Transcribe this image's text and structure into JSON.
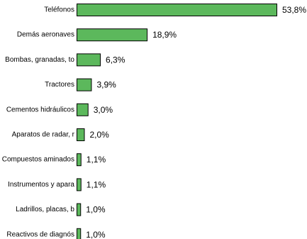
{
  "colors": {
    "bar_fill": "#5cb85c",
    "bar_stroke": "#000000",
    "text": "#000000",
    "background": "#ffffff"
  },
  "chart_data": {
    "type": "bar",
    "orientation": "horizontal",
    "categories": [
      "Teléfonos",
      "Demás aeronaves",
      "Bombas, granadas, to",
      "Tractores",
      "Cementos hidráulicos",
      "Aparatos de radar, r",
      "Compuestos aminados",
      "Instrumentos y apara",
      "Ladrillos, placas, b",
      "Reactivos de diagnós"
    ],
    "values": [
      53.8,
      18.9,
      6.3,
      3.9,
      3.0,
      2.0,
      1.1,
      1.1,
      1.0,
      1.0
    ],
    "value_labels": [
      "53,8%",
      "18,9%",
      "6,3%",
      "3,9%",
      "3,0%",
      "2,0%",
      "1,1%",
      "1,1%",
      "1,0%",
      "1,0%"
    ],
    "xlim": [
      0,
      53.8
    ],
    "grid": false,
    "legend": false
  }
}
